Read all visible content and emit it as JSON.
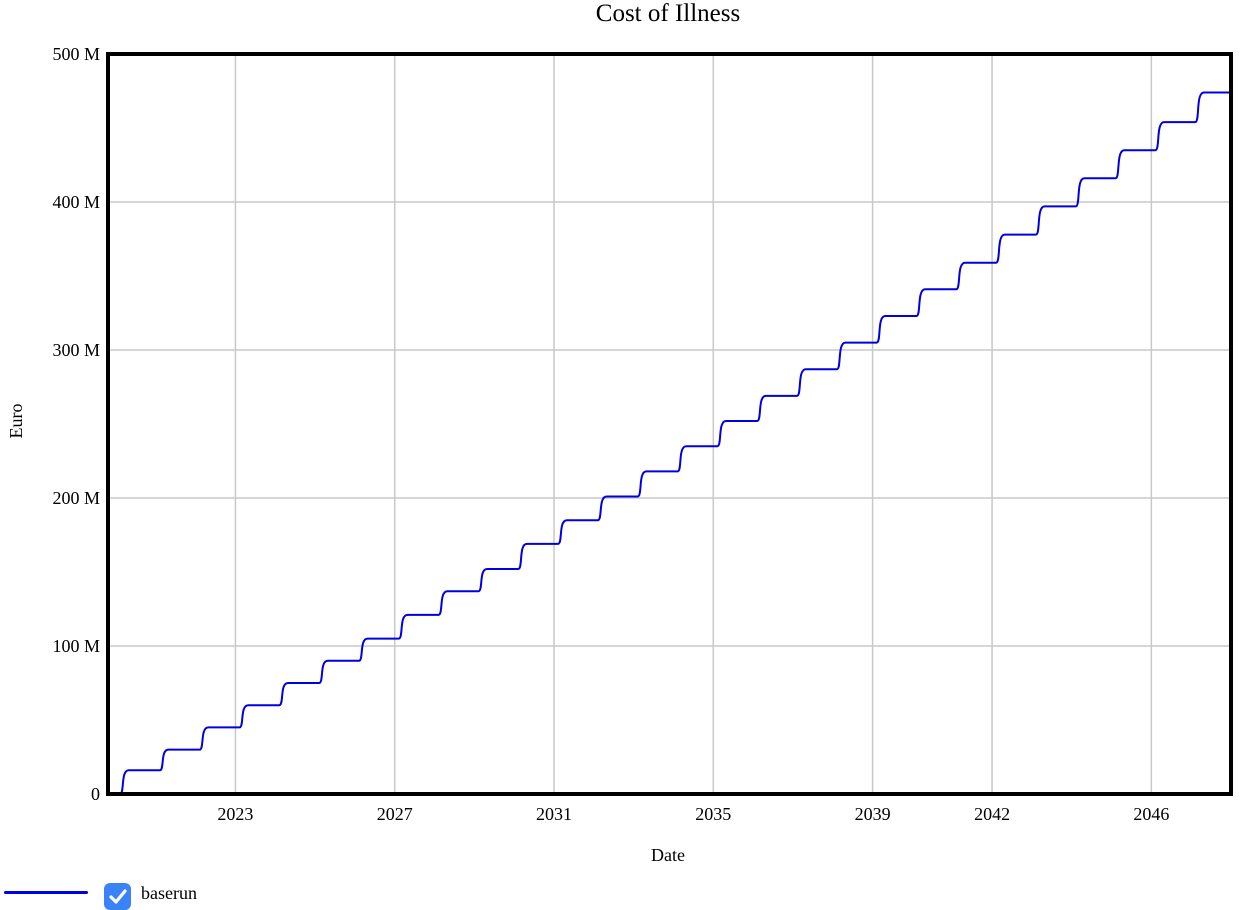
{
  "chart_data": {
    "type": "line",
    "title": "Cost of Illness",
    "xlabel": "Date",
    "ylabel": "Euro",
    "xlim": [
      2019.8,
      2048.0
    ],
    "ylim": [
      0,
      500000000
    ],
    "x_ticks": [
      2023,
      2027,
      2031,
      2035,
      2039,
      2042,
      2046
    ],
    "x_tick_labels": [
      "2023",
      "2027",
      "2031",
      "2035",
      "2039",
      "2042",
      "2046"
    ],
    "y_ticks": [
      0,
      100000000,
      200000000,
      300000000,
      400000000,
      500000000
    ],
    "y_tick_labels": [
      "0",
      "100 M",
      "200 M",
      "300 M",
      "400 M",
      "500 M"
    ],
    "grid": true,
    "legend_position": "bottom-left",
    "series": [
      {
        "name": "baserun",
        "color": "#0000e0",
        "shape": "step",
        "step_x": [
          2020.1,
          2021.1,
          2022.1,
          2023.1,
          2024.1,
          2025.1,
          2026.1,
          2027.1,
          2028.1,
          2029.1,
          2030.1,
          2031.1,
          2032.1,
          2033.1,
          2034.1,
          2035.1,
          2036.1,
          2037.1,
          2038.1,
          2039.1,
          2040.1,
          2041.1,
          2042.1,
          2043.1,
          2044.1,
          2045.1,
          2046.1,
          2047.1
        ],
        "values": [
          0,
          16000000,
          30000000,
          45000000,
          60000000,
          75000000,
          90000000,
          105000000,
          121000000,
          137000000,
          152000000,
          169000000,
          185000000,
          201000000,
          218000000,
          235000000,
          252000000,
          269000000,
          287000000,
          305000000,
          323000000,
          341000000,
          359000000,
          378000000,
          397000000,
          416000000,
          435000000,
          454000000,
          474000000
        ]
      }
    ]
  },
  "legend": {
    "items": [
      {
        "label": "baserun",
        "color": "#0000e0",
        "checked": true,
        "checkbox_color": "#3b82f6"
      }
    ]
  }
}
